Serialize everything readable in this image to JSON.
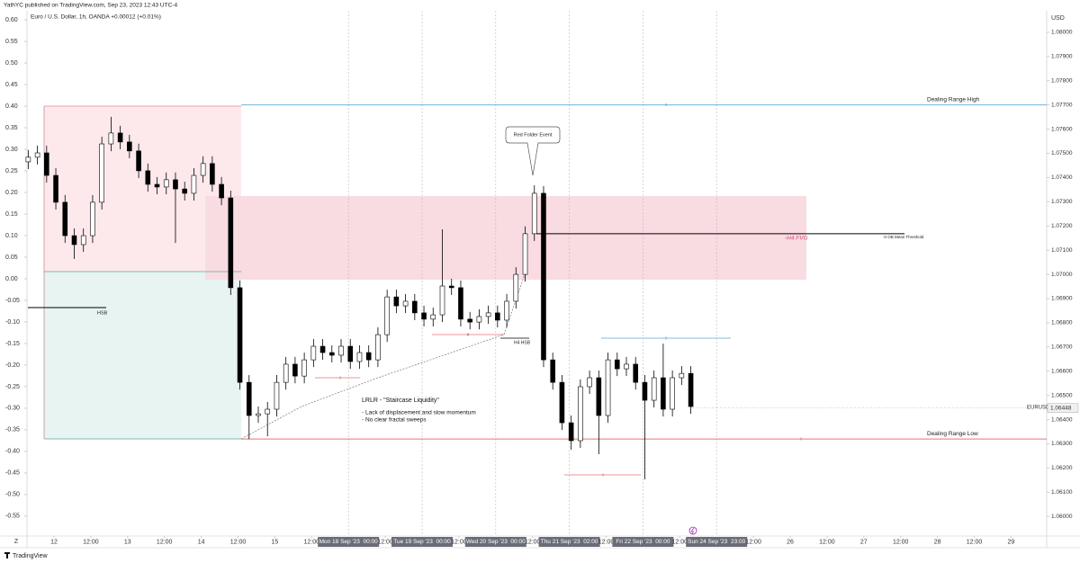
{
  "chart_data": {
    "type": "candlestick",
    "header": "YathYC published on TradingView.com, Sep 23, 2023 12:43 UTC-4",
    "title": "Euro / U.S. Dollar, 1h, OANDA  +0.00012 (+0.01%)",
    "grid": false,
    "up_color": "#ffffff",
    "down_color": "#000000",
    "xlim": [
      -0.709,
      26.968
    ],
    "xticks": [
      {
        "value": 0,
        "label": "12"
      },
      {
        "value": 1,
        "label": "12:00"
      },
      {
        "value": 2,
        "label": "13"
      },
      {
        "value": 3,
        "label": "12:00"
      },
      {
        "value": 4,
        "label": "14"
      },
      {
        "value": 5,
        "label": "12:00"
      },
      {
        "value": 6,
        "label": "15"
      },
      {
        "value": 7,
        "label": "12:00"
      },
      {
        "value": 8,
        "label": "Mon 18 Sep '23  00:00"
      },
      {
        "value": 9,
        "label": "12:00"
      },
      {
        "value": 10,
        "label": "Tue 19 Sep '23  00:00"
      },
      {
        "value": 11,
        "label": "12:00"
      },
      {
        "value": 12,
        "label": "Wed 20 Sep '23  00:00"
      },
      {
        "value": 13,
        "label": "12:00"
      },
      {
        "value": 14,
        "label": "Thu 21 Sep '23  02:00"
      },
      {
        "value": 15,
        "label": "12:00"
      },
      {
        "value": 16,
        "label": "Fri 22 Sep '23  00:00"
      },
      {
        "value": 17,
        "label": "12:00"
      },
      {
        "value": 18,
        "label": "Sun 24 Sep '23  23:00"
      },
      {
        "value": 19,
        "label": "12:00"
      },
      {
        "value": 20,
        "label": "26"
      },
      {
        "value": 21,
        "label": "12:00"
      },
      {
        "value": 22,
        "label": "27"
      },
      {
        "value": 23,
        "label": "12:00"
      },
      {
        "value": 24,
        "label": "28"
      },
      {
        "value": 25,
        "label": "12:00"
      },
      {
        "value": 26,
        "label": "29"
      }
    ],
    "ylim": [
      -0.617,
      0.621
    ],
    "yticks": [
      {
        "value": 0.6,
        "label": "0.60"
      },
      {
        "value": 0.55,
        "label": "0.55"
      },
      {
        "value": 0.5,
        "label": "0.50"
      },
      {
        "value": 0.45,
        "label": "0.45"
      },
      {
        "value": 0.4,
        "label": "0.40"
      },
      {
        "value": 0.35,
        "label": "0.35"
      },
      {
        "value": 0.3,
        "label": "0.30"
      },
      {
        "value": 0.25,
        "label": "0.25"
      },
      {
        "value": 0.2,
        "label": "0.20"
      },
      {
        "value": 0.15,
        "label": "0.15"
      },
      {
        "value": 0.1,
        "label": "0.10"
      },
      {
        "value": 0.05,
        "label": "0.05"
      },
      {
        "value": 0,
        "label": "0.00"
      },
      {
        "value": -0.05,
        "label": "-0.05"
      },
      {
        "value": -0.1,
        "label": "-0.10"
      },
      {
        "value": -0.15,
        "label": "-0.15"
      },
      {
        "value": -0.2,
        "label": "-0.20"
      },
      {
        "value": -0.25,
        "label": "-0.25"
      },
      {
        "value": -0.3,
        "label": "-0.30"
      },
      {
        "value": -0.35,
        "label": "-0.35"
      },
      {
        "value": -0.4,
        "label": "-0.40"
      },
      {
        "value": -0.45,
        "label": "-0.45"
      },
      {
        "value": -0.5,
        "label": "-0.50"
      },
      {
        "value": -0.55,
        "label": "-0.55"
      }
    ],
    "y2lim": [
      1.05882,
      1.08089
    ],
    "y2ticks": [
      {
        "value": 1.08,
        "label": "1.08000"
      },
      {
        "value": 1.079,
        "label": "1.07900"
      },
      {
        "value": 1.078,
        "label": "1.07800"
      },
      {
        "value": 1.077,
        "label": "1.07700"
      },
      {
        "value": 1.076,
        "label": "1.07600"
      },
      {
        "value": 1.075,
        "label": "1.07500"
      },
      {
        "value": 1.074,
        "label": "1.07400"
      },
      {
        "value": 1.073,
        "label": "1.07300"
      },
      {
        "value": 1.072,
        "label": "1.07200"
      },
      {
        "value": 1.071,
        "label": "1.07100"
      },
      {
        "value": 1.07,
        "label": "1.07000"
      },
      {
        "value": 1.069,
        "label": "1.06900"
      },
      {
        "value": 1.068,
        "label": "1.06800"
      },
      {
        "value": 1.067,
        "label": "1.06700"
      },
      {
        "value": 1.066,
        "label": "1.06600"
      },
      {
        "value": 1.065,
        "label": "1.06500"
      },
      {
        "value": 1.064,
        "label": "1.06400"
      },
      {
        "value": 1.063,
        "label": "1.06300"
      },
      {
        "value": 1.062,
        "label": "1.06200"
      },
      {
        "value": 1.061,
        "label": "1.06100"
      },
      {
        "value": 1.06,
        "label": "1.06000"
      }
    ],
    "candles": {
      "axis": "y2",
      "x": [
        -0.7,
        -0.45,
        -0.2,
        0.05,
        0.3,
        0.55,
        0.8,
        1.05,
        1.3,
        1.55,
        1.8,
        2.05,
        2.3,
        2.55,
        2.8,
        3.05,
        3.3,
        3.55,
        3.8,
        4.05,
        4.3,
        4.55,
        4.8,
        5.05,
        5.3,
        5.55,
        5.8,
        6.05,
        6.3,
        6.55,
        6.8,
        7.05,
        7.3,
        7.55,
        7.8,
        8.05,
        8.3,
        8.55,
        8.8,
        9.05,
        9.3,
        9.55,
        9.8,
        10.05,
        10.3,
        10.55,
        10.8,
        11.05,
        11.3,
        11.55,
        11.8,
        12.05,
        12.3,
        12.55,
        12.8,
        13.05,
        13.3,
        13.55,
        13.8,
        14.05,
        14.3,
        14.55,
        14.8,
        15.05,
        15.3,
        15.55,
        15.8,
        16.05,
        16.3,
        16.55,
        16.8,
        17.05,
        17.3
      ],
      "open": [
        1.07465,
        1.07484,
        1.07502,
        1.07409,
        1.07298,
        1.0716,
        1.07123,
        1.0716,
        1.07298,
        1.07539,
        1.07584,
        1.07547,
        1.0751,
        1.07428,
        1.07372,
        1.07361,
        1.07391,
        1.07353,
        1.07335,
        1.07409,
        1.07458,
        1.07372,
        1.07316,
        1.06945,
        1.06554,
        1.06417,
        1.06424,
        1.06443,
        1.06554,
        1.06629,
        1.0658,
        1.06647,
        1.06703,
        1.06677,
        1.06666,
        1.06703,
        1.0664,
        1.06677,
        1.06647,
        1.06751,
        1.06907,
        1.0687,
        1.06889,
        1.06841,
        1.06815,
        1.06833,
        1.06952,
        1.06945,
        1.06815,
        1.06803,
        1.06826,
        1.06841,
        1.06811,
        1.06889,
        1.07,
        1.07168,
        1.07335,
        1.06647,
        1.06554,
        1.06387,
        1.06313,
        1.06536,
        1.06573,
        1.06417,
        1.06647,
        1.0661,
        1.06629,
        1.06554,
        1.0648,
        1.06573,
        1.06443,
        1.06573,
        1.06591
      ],
      "high": [
        1.07514,
        1.07532,
        1.07532,
        1.07439,
        1.07328,
        1.0719,
        1.0719,
        1.07328,
        1.07569,
        1.07651,
        1.07614,
        1.07577,
        1.0754,
        1.07458,
        1.07402,
        1.07421,
        1.07421,
        1.07383,
        1.07439,
        1.07488,
        1.07488,
        1.07402,
        1.07346,
        1.06975,
        1.06584,
        1.06454,
        1.06473,
        1.06584,
        1.06659,
        1.06659,
        1.06677,
        1.06733,
        1.06733,
        1.06707,
        1.06733,
        1.06733,
        1.06707,
        1.06707,
        1.06781,
        1.06937,
        1.06937,
        1.06919,
        1.06919,
        1.06871,
        1.06863,
        1.07186,
        1.06982,
        1.06975,
        1.06845,
        1.06856,
        1.06871,
        1.06871,
        1.06919,
        1.0703,
        1.07198,
        1.07368,
        1.07365,
        1.06677,
        1.06584,
        1.06417,
        1.06566,
        1.06603,
        1.06603,
        1.06677,
        1.06677,
        1.06659,
        1.06659,
        1.06584,
        1.06603,
        1.06714,
        1.06603,
        1.06621,
        1.06621
      ],
      "low": [
        1.07435,
        1.07454,
        1.07379,
        1.07268,
        1.0713,
        1.07064,
        1.07093,
        1.0713,
        1.07268,
        1.07509,
        1.07517,
        1.0748,
        1.07398,
        1.07342,
        1.07331,
        1.07331,
        1.0713,
        1.07305,
        1.07305,
        1.07379,
        1.07342,
        1.07286,
        1.06915,
        1.06524,
        1.0632,
        1.06387,
        1.06331,
        1.06413,
        1.06524,
        1.0655,
        1.0655,
        1.06617,
        1.06647,
        1.06636,
        1.06636,
        1.0661,
        1.0661,
        1.06617,
        1.06617,
        1.06721,
        1.0684,
        1.0684,
        1.06811,
        1.06785,
        1.06785,
        1.06803,
        1.06915,
        1.06785,
        1.06773,
        1.06773,
        1.06796,
        1.06781,
        1.06781,
        1.06859,
        1.0697,
        1.07138,
        1.06617,
        1.06524,
        1.06357,
        1.06276,
        1.06283,
        1.06506,
        1.06257,
        1.06387,
        1.0658,
        1.0658,
        1.06524,
        1.06153,
        1.0645,
        1.06413,
        1.06413,
        1.06543,
        1.06424
      ],
      "close": [
        1.07484,
        1.07502,
        1.07409,
        1.07298,
        1.0716,
        1.07123,
        1.0716,
        1.07298,
        1.07539,
        1.07584,
        1.07547,
        1.0751,
        1.07428,
        1.07372,
        1.07361,
        1.07391,
        1.07353,
        1.07335,
        1.07409,
        1.07458,
        1.07372,
        1.07316,
        1.06945,
        1.06554,
        1.06417,
        1.06424,
        1.06443,
        1.06554,
        1.06629,
        1.0658,
        1.06647,
        1.06703,
        1.06677,
        1.06666,
        1.06703,
        1.0664,
        1.06677,
        1.06647,
        1.06751,
        1.06907,
        1.0687,
        1.06889,
        1.06841,
        1.06815,
        1.06833,
        1.06952,
        1.06945,
        1.06815,
        1.06803,
        1.06826,
        1.06841,
        1.06811,
        1.06889,
        1.07,
        1.07168,
        1.07335,
        1.06647,
        1.06554,
        1.06387,
        1.06313,
        1.06536,
        1.06573,
        1.06417,
        1.06647,
        1.0661,
        1.06629,
        1.06554,
        1.0648,
        1.06573,
        1.06443,
        1.06573,
        1.06591,
        1.06454
      ]
    },
    "levels": [
      {
        "label": "Dealing Range High",
        "value": 1.077,
        "color": "#5aa9d6"
      },
      {
        "label": "Dealing Range Low",
        "value": 1.0632,
        "color": "#e57373"
      },
      {
        "label": "-0 OB Mean Threshold",
        "value": 1.07168,
        "color": "#000000"
      }
    ],
    "last_price": 1.06448,
    "symbol": "EURUSD",
    "currency": "USD",
    "annotations": {
      "red_folder": "Red Folder Event",
      "fvg": "-H4 FVG",
      "hsb": "HSB",
      "h4_hsb": "H4 HSB",
      "lrlr": "LRLR - \"Staircase Liquidity\"",
      "note1": "- Lack of displacement and slow momentum",
      "note2": "- No clear fractal sweeps",
      "marker": "x"
    },
    "zoom_button": "Z",
    "footer": "TradingView"
  }
}
